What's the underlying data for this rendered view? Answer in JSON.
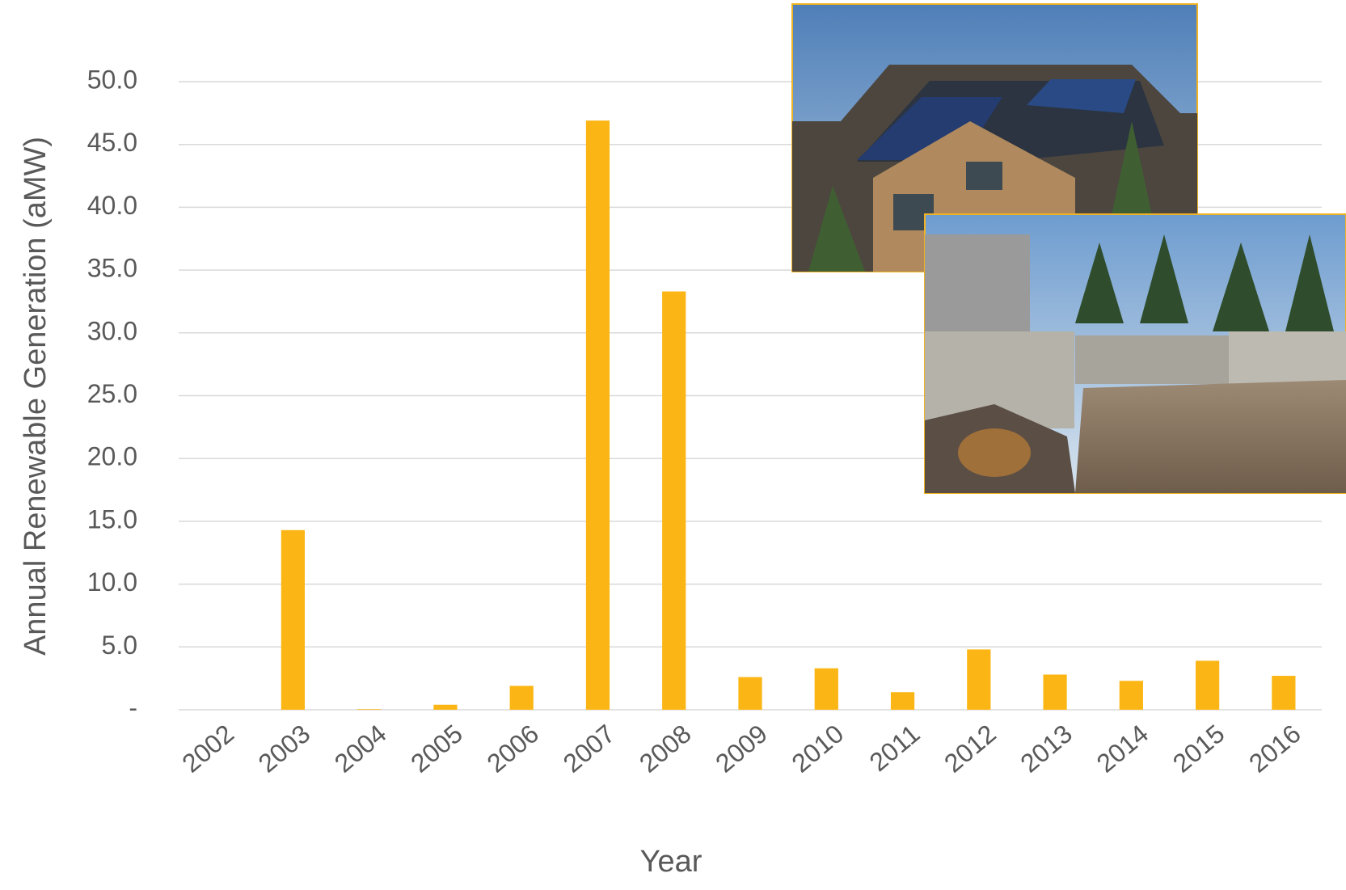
{
  "chart_data": {
    "type": "bar",
    "y_label": "Annual Renewable Generation (aMW)",
    "x_label": "Year",
    "categories": [
      "2002",
      "2003",
      "2004",
      "2005",
      "2006",
      "2007",
      "2008",
      "2009",
      "2010",
      "2011",
      "2012",
      "2013",
      "2014",
      "2015",
      "2016"
    ],
    "values": [
      0,
      14.3,
      0.05,
      0.4,
      1.9,
      46.9,
      33.3,
      2.6,
      3.3,
      1.4,
      4.8,
      2.8,
      2.3,
      3.9,
      2.7
    ],
    "color": "#fbb615",
    "ylim": [
      0,
      50
    ],
    "yticks": [
      {
        "value": 0,
        "label": "-"
      },
      {
        "value": 5,
        "label": "5.0"
      },
      {
        "value": 10,
        "label": "10.0"
      },
      {
        "value": 15,
        "label": "15.0"
      },
      {
        "value": 20,
        "label": "20.0"
      },
      {
        "value": 25,
        "label": "25.0"
      },
      {
        "value": 30,
        "label": "30.0"
      },
      {
        "value": 35,
        "label": "35.0"
      },
      {
        "value": 40,
        "label": "40.0"
      },
      {
        "value": 45,
        "label": "45.0"
      },
      {
        "value": 50,
        "label": "50.0"
      }
    ],
    "grid": true
  }
}
